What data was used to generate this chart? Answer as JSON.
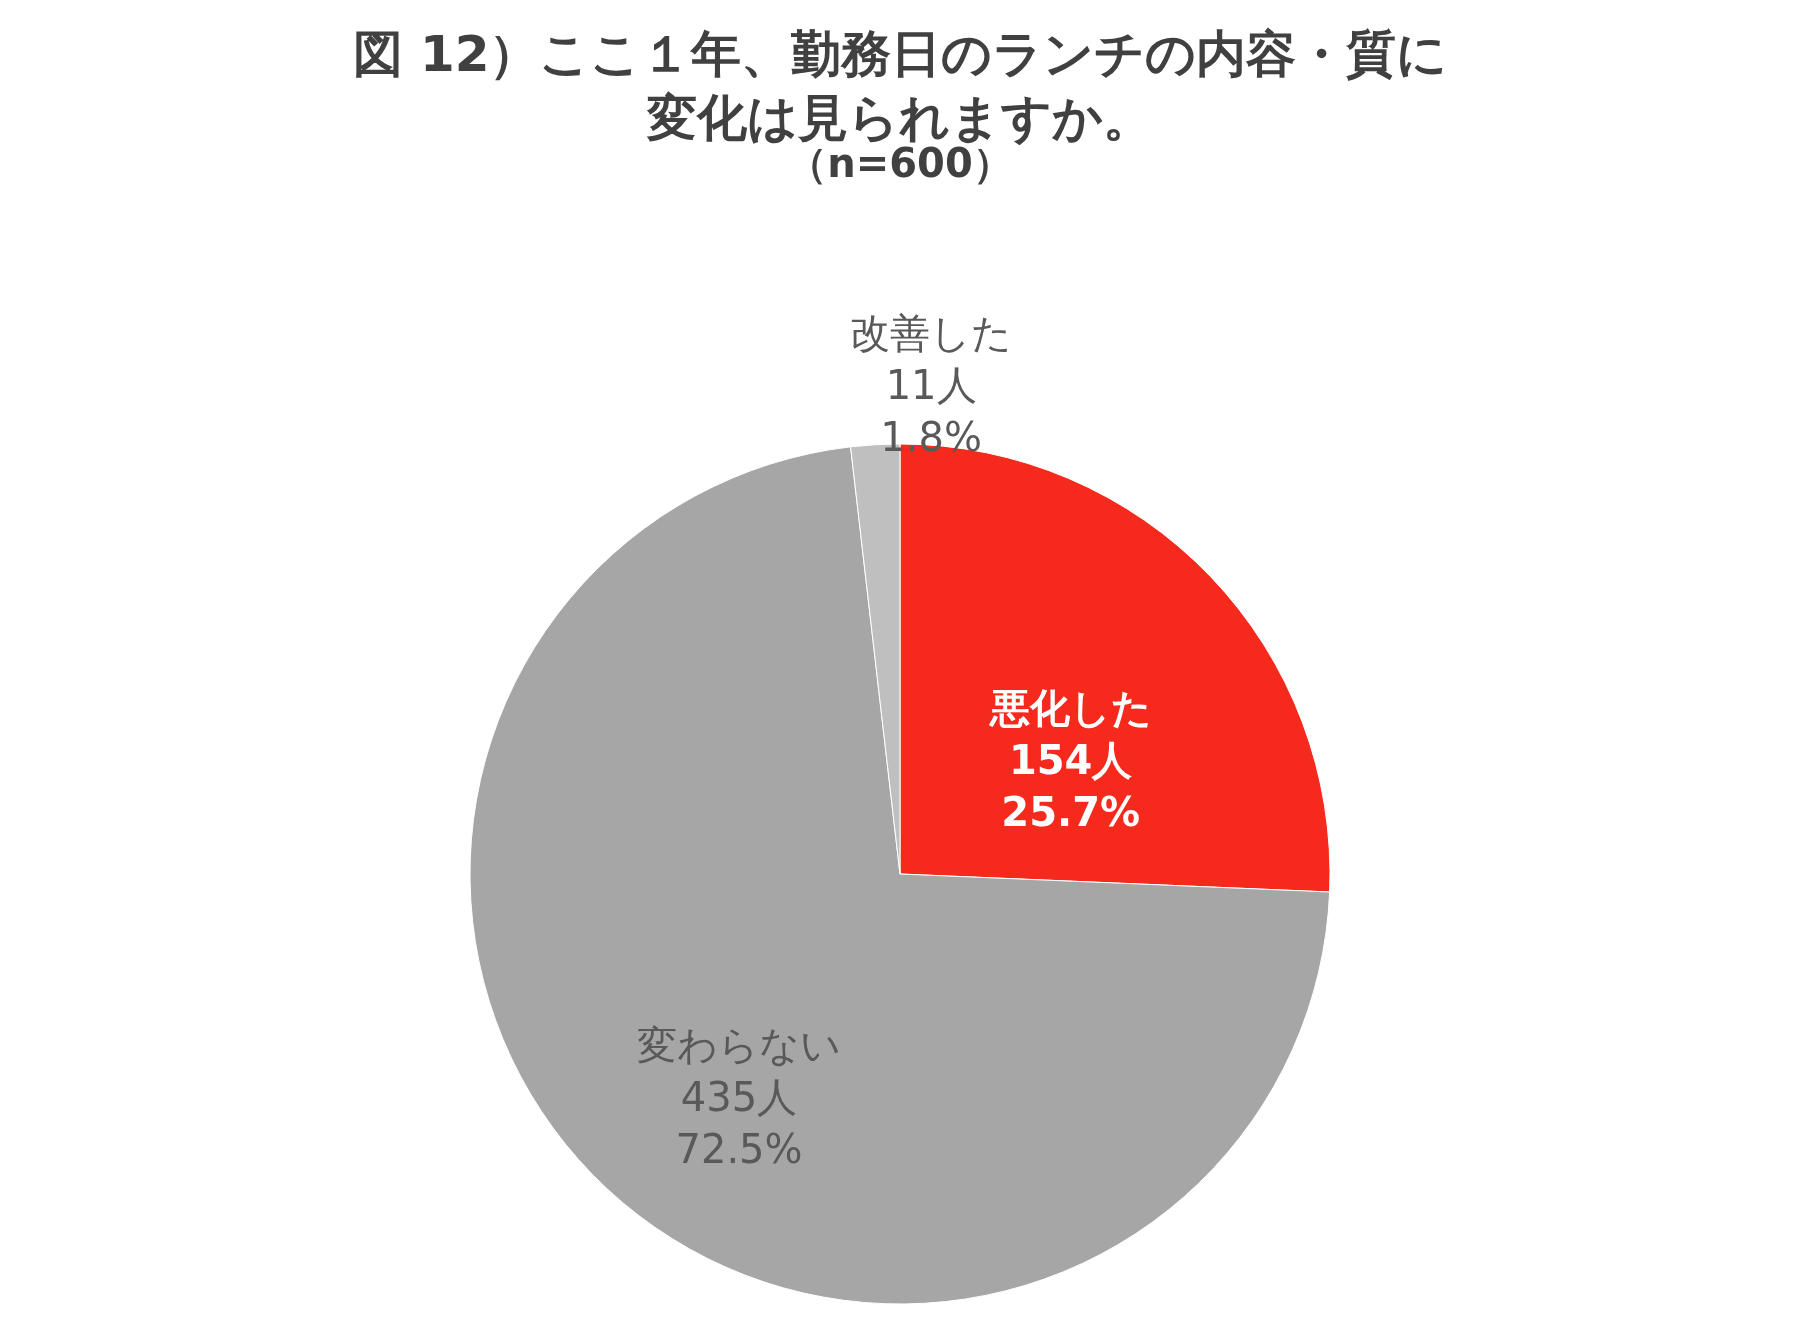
{
  "chart_data": {
    "type": "pie",
    "title": "図 12）ここ１年、勤務日のランチの内容・質に変化は見られますか。",
    "subtitle": "（n=600）",
    "categories": [
      "悪化した",
      "変わらない",
      "改善した"
    ],
    "values": [
      154,
      435,
      11
    ],
    "value_labels": [
      "154人\n25.7%",
      "435人\n72.5%",
      "11人\n1.8%"
    ],
    "colors": [
      "#f52a1d",
      "#a6a6a6",
      "#bfbfbf"
    ],
    "legend": false
  }
}
